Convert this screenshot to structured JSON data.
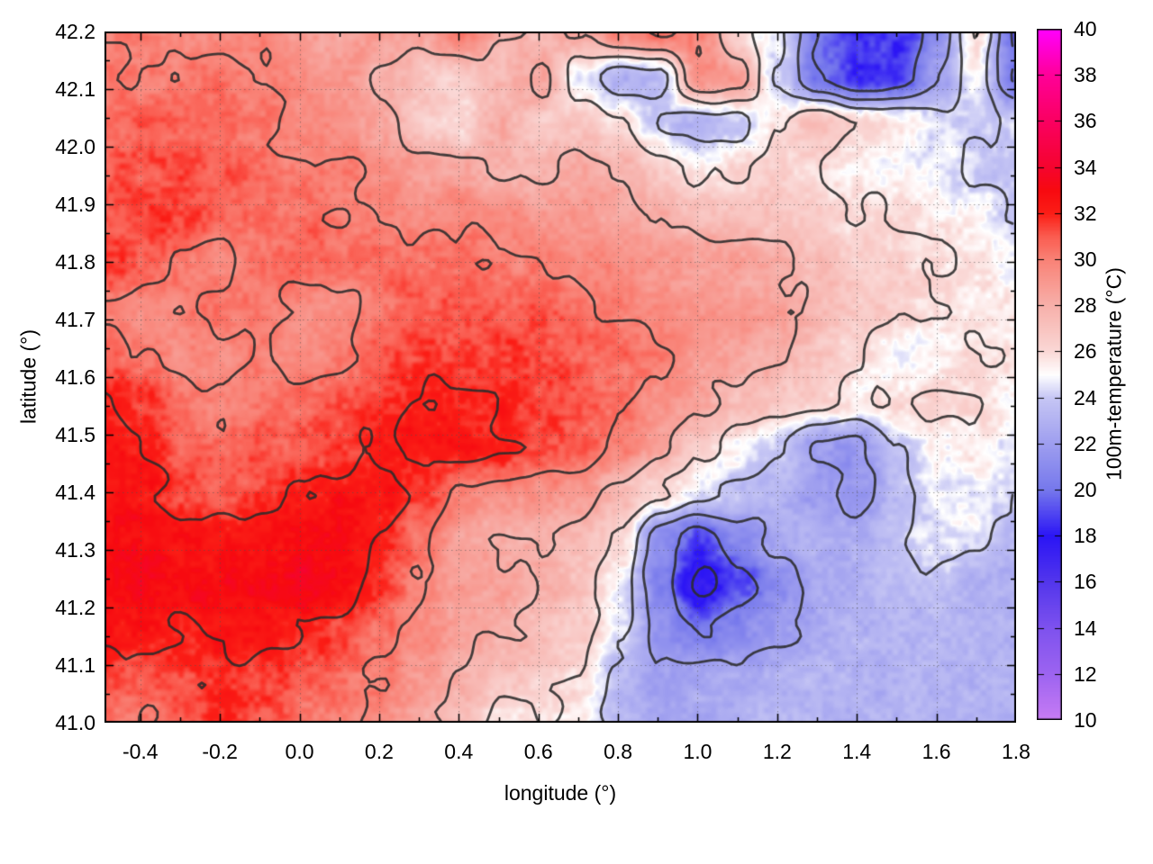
{
  "figure": {
    "background": "#ffffff",
    "xlabel": "longitude (°)",
    "ylabel": "latitude (°)",
    "colorbar_label": "100m-temperature (°C)"
  },
  "chart_data": {
    "type": "heatmap",
    "title": "",
    "xlabel": "longitude (°)",
    "ylabel": "latitude (°)",
    "zlabel": "100m-temperature (°C)",
    "xlim": [
      -0.49,
      1.8
    ],
    "ylim": [
      41.0,
      42.2
    ],
    "zlim": [
      10,
      40
    ],
    "x_ticks": [
      -0.4,
      -0.2,
      0.0,
      0.2,
      0.4,
      0.6,
      0.8,
      1.0,
      1.2,
      1.4,
      1.6,
      1.8
    ],
    "y_ticks": [
      41.0,
      41.1,
      41.2,
      41.3,
      41.4,
      41.5,
      41.6,
      41.7,
      41.8,
      41.9,
      42.0,
      42.1,
      42.2
    ],
    "x_minor_step": 0.1,
    "y_minor_step": 0.05,
    "colorbar_ticks": [
      10,
      12,
      14,
      16,
      18,
      20,
      22,
      24,
      26,
      28,
      30,
      32,
      34,
      36,
      38,
      40
    ],
    "grid_shown": true,
    "grid_style": "dotted",
    "contour_levels": [
      16,
      18,
      20,
      22,
      24,
      26,
      28,
      30,
      32
    ],
    "contour_color": "#2b2b2b",
    "palette": [
      [
        10,
        "#C87CF4"
      ],
      [
        12,
        "#9D64F0"
      ],
      [
        14,
        "#7E52EE"
      ],
      [
        16,
        "#5336EC"
      ],
      [
        18,
        "#2B15F5"
      ],
      [
        20,
        "#7678EC"
      ],
      [
        22,
        "#9E9EEF"
      ],
      [
        24,
        "#C6C6F4"
      ],
      [
        25,
        "#FFFFFF"
      ],
      [
        26,
        "#FAD8D6"
      ],
      [
        28,
        "#F7B0AA"
      ],
      [
        30,
        "#F98276"
      ],
      [
        31,
        "#FA5C50"
      ],
      [
        32,
        "#FB1E16"
      ],
      [
        33,
        "#F70A10"
      ],
      [
        34,
        "#F5042E"
      ],
      [
        36,
        "#FA0061"
      ],
      [
        38,
        "#FF0098"
      ],
      [
        40,
        "#FF00FE"
      ]
    ],
    "temperature": {
      "rows": 16,
      "cols": 24,
      "order": "north_to_south_rows_west_to_east_cols",
      "lat_north": 42.2,
      "lat_south": 41.0,
      "lon_west": -0.49,
      "lon_east": 1.8,
      "values": [
        [
          30,
          30,
          29.5,
          29.5,
          30,
          29,
          28.5,
          29,
          28.5,
          30,
          28,
          27.5,
          28,
          30,
          30.5,
          30,
          26,
          24.5,
          20,
          18.5,
          18.5,
          21,
          26,
          19.5
        ],
        [
          30.5,
          30,
          30,
          30.5,
          30,
          29.5,
          29,
          28,
          27,
          26.5,
          27.5,
          28.5,
          25,
          23,
          23.5,
          29.5,
          29,
          24,
          20,
          18.5,
          19,
          22,
          25,
          20
        ],
        [
          30.5,
          31,
          30.5,
          30.5,
          30,
          29.5,
          29.5,
          28.5,
          26.5,
          26,
          28,
          26.5,
          27,
          26,
          24,
          23,
          23.5,
          26,
          27.5,
          26,
          25.5,
          24.5,
          24,
          24
        ],
        [
          31,
          31,
          31.5,
          31,
          30.5,
          30,
          30,
          29.5,
          29,
          28.5,
          28,
          27.5,
          28.5,
          28,
          26.5,
          25.5,
          26,
          26.5,
          26,
          25.5,
          25,
          24.5,
          24,
          23.5
        ],
        [
          31,
          31.5,
          31.5,
          31,
          30.5,
          30.5,
          30,
          30,
          29.5,
          30,
          29.5,
          29,
          29,
          28.5,
          28,
          27.5,
          27,
          27,
          26.5,
          26,
          26,
          25.5,
          25,
          24
        ],
        [
          31.5,
          31,
          30,
          29.5,
          30.5,
          31,
          30.5,
          30.5,
          30.5,
          30.5,
          30,
          30,
          29.5,
          29.5,
          29,
          28.5,
          28.5,
          28,
          27.5,
          26.5,
          26.5,
          26,
          25.5,
          25
        ],
        [
          30,
          29.5,
          30,
          30.5,
          30,
          29.5,
          29.5,
          30.5,
          31,
          31,
          31,
          31,
          30.5,
          30,
          29.5,
          29,
          29,
          28.5,
          27.5,
          27,
          26.5,
          26,
          25.5,
          25.5
        ],
        [
          31,
          30,
          29.5,
          29.5,
          30,
          29.5,
          30,
          31,
          31.5,
          31.5,
          31.5,
          31,
          31,
          30.5,
          30,
          29,
          28.5,
          28,
          27,
          26,
          24.5,
          25,
          26,
          26
        ],
        [
          32,
          31.5,
          30.5,
          30,
          30.5,
          30.5,
          31,
          31.5,
          32,
          32,
          32,
          31.5,
          31,
          30.5,
          29.5,
          28.5,
          27.5,
          27,
          26.5,
          25.5,
          26,
          26.5,
          26,
          25
        ],
        [
          32.5,
          32,
          31,
          30.5,
          31,
          31,
          31.5,
          32,
          32.5,
          32.5,
          32,
          31.5,
          31,
          30,
          28.5,
          26.5,
          25,
          24,
          22,
          21.5,
          24,
          25,
          25.5,
          24.5
        ],
        [
          32.5,
          32.5,
          31.5,
          31,
          31.5,
          32,
          32.5,
          32.5,
          31.5,
          30,
          29.5,
          29.5,
          29,
          27.5,
          26,
          24.5,
          23.5,
          23,
          22,
          21.5,
          23.5,
          24.5,
          25,
          24
        ],
        [
          33,
          33,
          32.5,
          32.5,
          32.5,
          33,
          33,
          32,
          30.5,
          28.5,
          28,
          28,
          27.5,
          26,
          21,
          19,
          21,
          22.5,
          23,
          23,
          24,
          24.5,
          24.5,
          23.5
        ],
        [
          33,
          33.5,
          33,
          33,
          33,
          33.5,
          33,
          31.5,
          30,
          29,
          28.5,
          28,
          27,
          25,
          20.5,
          17.5,
          19,
          21,
          22.5,
          23,
          23.5,
          23.5,
          23,
          23
        ],
        [
          32.5,
          32.5,
          32,
          32.5,
          32.5,
          32,
          31.5,
          30.5,
          29.5,
          28.5,
          28,
          27.5,
          26.5,
          24.5,
          21.5,
          20,
          21,
          22,
          22.5,
          23,
          23,
          23,
          23,
          23
        ],
        [
          31.5,
          31,
          31.5,
          32,
          31.5,
          31,
          30.5,
          30,
          29,
          28,
          27,
          26.5,
          26,
          23.5,
          22,
          22.5,
          22.5,
          23,
          23,
          23,
          23,
          23,
          23,
          23
        ],
        [
          30.5,
          30,
          31,
          31.5,
          31,
          30.5,
          30,
          29.5,
          28.5,
          27.5,
          25.5,
          26,
          25.5,
          23,
          22.5,
          22.5,
          23,
          23,
          23,
          23,
          23,
          23,
          23,
          23
        ]
      ]
    }
  }
}
